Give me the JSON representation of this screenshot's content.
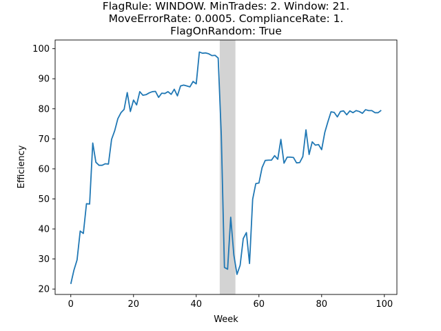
{
  "chart_data": {
    "type": "line",
    "title_lines": [
      "FlagRule: WINDOW. MinTrades: 2. Window: 21.",
      "MoveErrorRate: 0.0005. ComplianceRate: 1.",
      "FlagOnRandom: True"
    ],
    "xlabel": "Week",
    "ylabel": "Efficiency",
    "xlim": [
      -5,
      104
    ],
    "ylim": [
      18.2,
      102.9
    ],
    "xticks": [
      0,
      20,
      40,
      60,
      80,
      100
    ],
    "yticks": [
      20,
      30,
      40,
      50,
      60,
      70,
      80,
      90,
      100
    ],
    "grid": false,
    "line_color": "#1f77b4",
    "shaded_region": {
      "x_start": 47.5,
      "x_end": 52.5,
      "color": "#d3d3d3"
    },
    "series": [
      {
        "x": [
          0,
          1,
          2,
          3,
          4,
          5,
          6,
          7,
          8,
          9,
          10,
          11,
          12,
          13,
          14,
          15,
          16,
          17,
          18,
          19,
          20,
          21,
          22,
          23,
          24,
          25,
          26,
          27,
          28,
          29,
          30,
          31,
          32,
          33,
          34,
          35,
          36,
          37,
          38,
          39,
          40,
          41,
          42,
          43,
          44,
          45,
          46,
          47,
          48,
          49,
          50,
          51,
          52,
          53,
          54,
          55,
          56,
          57,
          58,
          59,
          60,
          61,
          62,
          63,
          64,
          65,
          66,
          67,
          68,
          69,
          70,
          71,
          72,
          73,
          74,
          75,
          76,
          77,
          78,
          79,
          80,
          81,
          82,
          83,
          84,
          85,
          86,
          87,
          88,
          89,
          90,
          91,
          92,
          93,
          94,
          95,
          96,
          97,
          98,
          99
        ],
        "values": [
          21.7,
          26.3,
          29.7,
          39.3,
          38.5,
          48.4,
          48.3,
          68.6,
          62.2,
          61.2,
          61.2,
          61.7,
          61.6,
          69.8,
          72.7,
          76.7,
          78.7,
          79.8,
          85.4,
          79.1,
          82.9,
          81.3,
          85.7,
          84.5,
          84.7,
          85.3,
          85.7,
          85.8,
          83.8,
          85.2,
          85.1,
          85.7,
          84.8,
          86.5,
          84.3,
          87.6,
          87.9,
          87.6,
          87.3,
          89.1,
          88.3,
          98.9,
          98.5,
          98.6,
          98.3,
          97.7,
          97.8,
          96.9,
          71.1,
          27.2,
          26.6,
          43.9,
          31.3,
          24.9,
          27.9,
          36.8,
          38.8,
          28.5,
          49.9,
          55.1,
          55.3,
          60.4,
          62.8,
          62.9,
          62.9,
          64.4,
          63.2,
          69.8,
          61.9,
          63.9,
          63.9,
          63.8,
          62.0,
          62.1,
          64.1,
          73.0,
          64.8,
          69.0,
          67.9,
          68.1,
          66.4,
          72.1,
          75.7,
          79.0,
          78.8,
          77.3,
          79.1,
          79.3,
          78.0,
          79.3,
          78.7,
          79.4,
          79.1,
          78.5,
          79.7,
          79.4,
          79.4,
          78.7,
          78.7,
          79.5
        ]
      }
    ]
  }
}
